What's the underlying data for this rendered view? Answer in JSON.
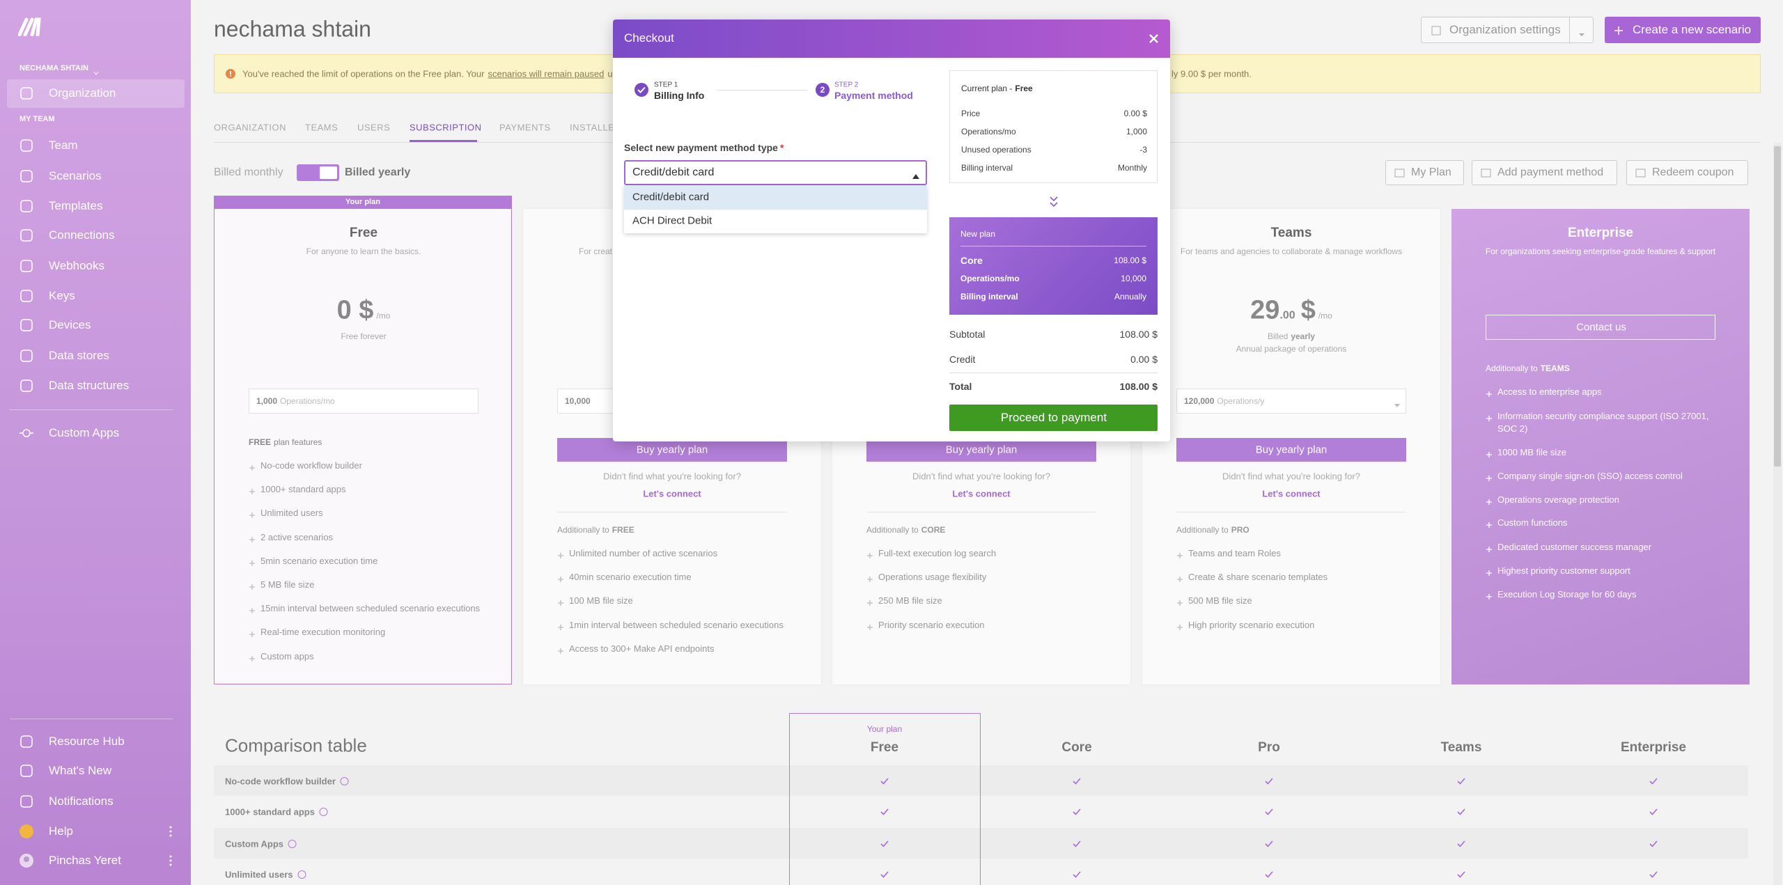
{
  "sidebar": {
    "org": "NECHAMA SHTAIN",
    "active": "Organization",
    "section": "MY TEAM",
    "items": [
      "Team",
      "Scenarios",
      "Templates",
      "Connections",
      "Webhooks",
      "Keys",
      "Devices",
      "Data stores",
      "Data structures"
    ],
    "custom_apps": "Custom Apps",
    "bottom": [
      "Resource Hub",
      "What's New",
      "Notifications",
      "Help"
    ],
    "user": "Pinchas Yeret"
  },
  "header": {
    "title": "nechama shtain",
    "org_settings": "Organization settings",
    "create": "Create a new scenario"
  },
  "banner": {
    "text": "You've reached the limit of operations on the Free plan. Your",
    "link": "scenarios will remain paused",
    "text_cut": "unt",
    "text_end": "ly 9.00 $ per month."
  },
  "tabs": [
    "ORGANIZATION",
    "TEAMS",
    "USERS",
    "SUBSCRIPTION",
    "PAYMENTS",
    "INSTALLE"
  ],
  "billing": {
    "monthly": "Billed monthly",
    "yearly": "Billed yearly"
  },
  "actions": [
    "My Plan",
    "Add payment method",
    "Redeem coupon"
  ],
  "plans": [
    {
      "badge": "Your plan",
      "name": "Free",
      "description": "For anyone to learn the basics.",
      "price": "0 $",
      "period": "/mo",
      "price_note": "Free forever",
      "operations": "1,000",
      "operations_unit": "Operations/mo",
      "features_title_bold": "FREE",
      "features_title": "plan features",
      "features": [
        "No-code workflow builder",
        "1000+ standard apps",
        "Unlimited users",
        "2 active scenarios",
        "5min scenario execution time",
        "5 MB file size",
        "15min interval between scheduled scenario executions",
        "Real-time execution monitoring",
        "Custom apps"
      ]
    },
    {
      "description": "For creat",
      "operations": "10,000",
      "button": "Buy yearly plan",
      "help": "Didn't find what you're looking for?",
      "connect": "Let's connect",
      "additionally": "Additionally to",
      "base": "FREE",
      "features": [
        "Unlimited number of active scenarios",
        "40min scenario execution time",
        "100 MB file size",
        "1min interval between scheduled scenario executions",
        "Access to 300+ Make API endpoints"
      ]
    },
    {
      "button": "Buy yearly plan",
      "help": "Didn't find what you're looking for?",
      "connect": "Let's connect",
      "additionally": "Additionally to",
      "base": "CORE",
      "features": [
        "Full-text execution log search",
        "Operations usage flexibility",
        "250 MB file size",
        "Priority scenario execution"
      ]
    },
    {
      "name": "Teams",
      "description": "For teams and agencies to collaborate & manage workflows",
      "price": "29",
      "cents": ".00",
      "currency": "$",
      "period": "/mo",
      "price_note": "Billed",
      "price_note_bold": "yearly",
      "price_sub": "Annual package of operations",
      "operations": "120,000",
      "operations_unit": "Operations/y",
      "button": "Buy yearly plan",
      "help": "Didn't find what you're looking for?",
      "connect": "Let's connect",
      "additionally": "Additionally to",
      "base": "PRO",
      "features": [
        "Teams and team Roles",
        "Create & share scenario templates",
        "500 MB file size",
        "High priority scenario execution"
      ]
    },
    {
      "name": "Enterprise",
      "description": "For organizations seeking enterprise-grade features & support",
      "button": "Contact us",
      "additionally": "Additionally to",
      "base": "TEAMS",
      "features": [
        "Access to enterprise apps",
        "Information security compliance support (ISO 27001, SOC 2)",
        "1000 MB file size",
        "Company single sign-on (SSO) access control",
        "Operations overage protection",
        "Custom functions",
        "Dedicated customer success manager",
        "Highest priority customer support",
        "Execution Log Storage for 60 days"
      ]
    }
  ],
  "modal": {
    "title": "Checkout",
    "steps": [
      {
        "label": "STEP 1",
        "name": "Billing Info"
      },
      {
        "number": "2",
        "label": "STEP 2",
        "name": "Payment method"
      }
    ],
    "field_label": "Select new payment method type",
    "required": "*",
    "selected": "Credit/debit card",
    "options": [
      "Credit/debit card",
      "ACH Direct Debit"
    ],
    "current": {
      "title": "Current plan -",
      "plan": "Free",
      "rows": [
        [
          "Price",
          "0.00 $"
        ],
        [
          "Operations/mo",
          "1,000"
        ],
        [
          "Unused operations",
          "-3"
        ],
        [
          "Billing interval",
          "Monthly"
        ]
      ]
    },
    "new_plan": {
      "title": "New plan",
      "rows": [
        [
          "Core",
          "108.00 $"
        ],
        [
          "Operations/mo",
          "10,000"
        ],
        [
          "Billing interval",
          "Annually"
        ]
      ]
    },
    "summary": [
      [
        "Subtotal",
        "108.00 $"
      ],
      [
        "Credit",
        "0.00 $"
      ],
      [
        "Total",
        "108.00 $"
      ]
    ],
    "button": "Proceed to payment"
  },
  "comparison": {
    "title": "Comparison table",
    "your_plan": "Your plan",
    "columns": [
      "Free",
      "Core",
      "Pro",
      "Teams",
      "Enterprise"
    ],
    "rows": [
      "No-code workflow builder",
      "1000+ standard apps",
      "Custom Apps",
      "Unlimited users"
    ]
  }
}
